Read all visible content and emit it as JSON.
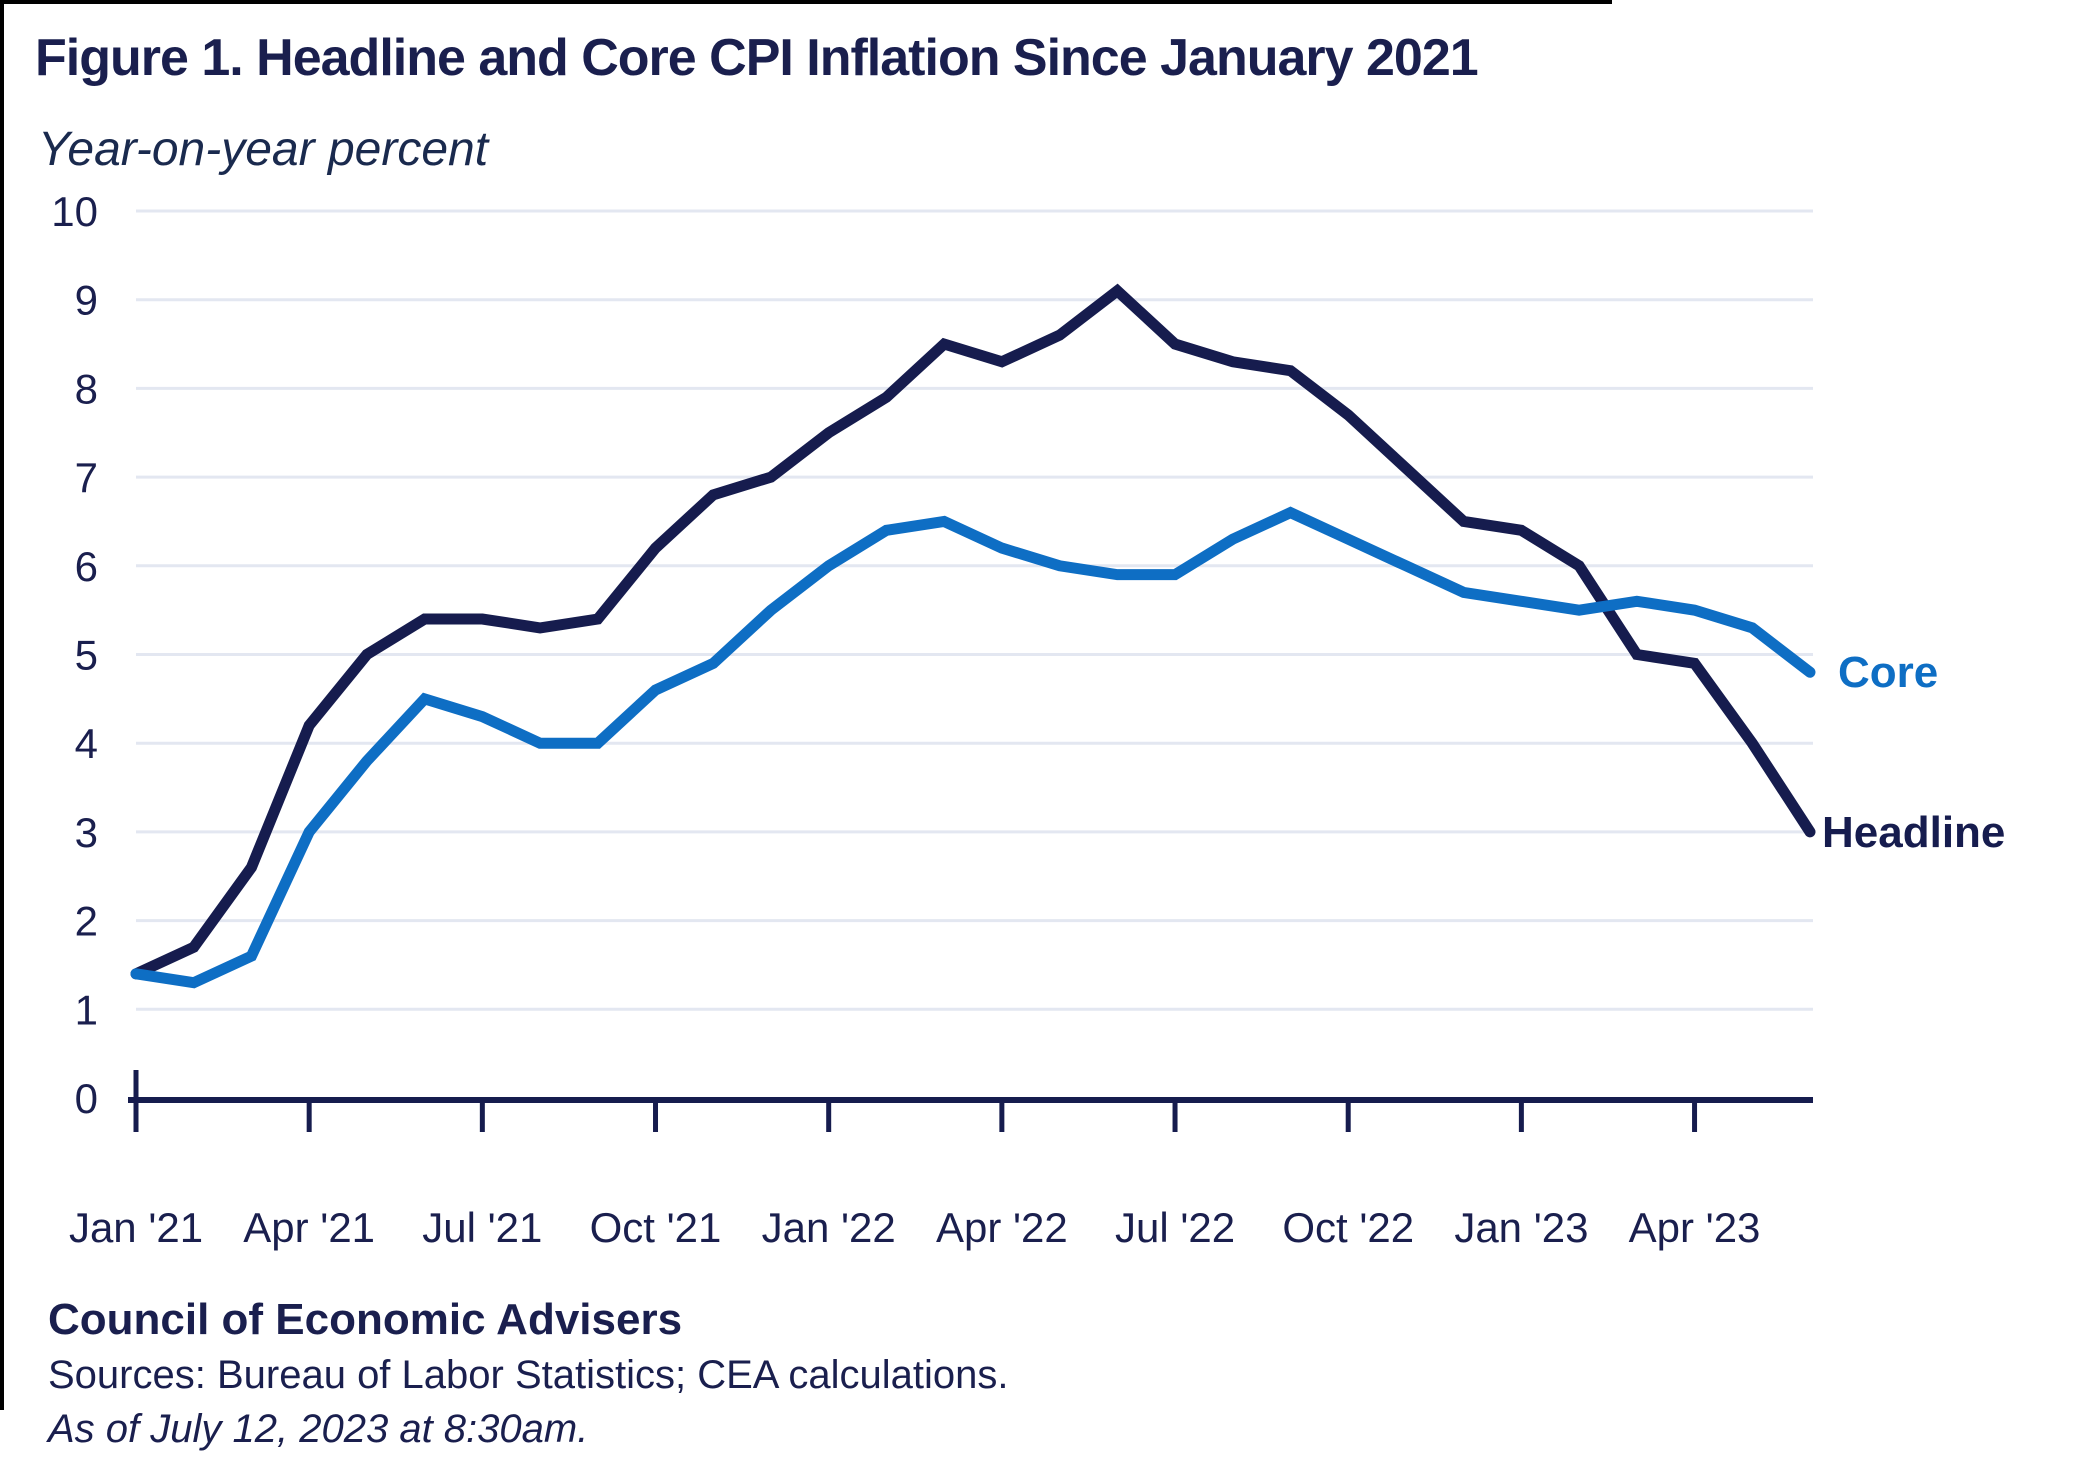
{
  "page": {
    "title": "Figure 1. Headline and Core CPI Inflation Since January 2021",
    "subtitle": "Year-on-year percent",
    "footer": {
      "org": "Council of Economic Advisers",
      "sources": "Sources: Bureau of Labor Statistics; CEA calculations.",
      "as_of": "As of July 12, 2023 at 8:30am."
    }
  },
  "colors": {
    "headline_line": "#161C4E",
    "core_line": "#0E6EC4",
    "text": "#1A1F4E",
    "gridline": "#E3E7F1",
    "axis": "#161C4E"
  },
  "chart_data": {
    "type": "line",
    "title": "Figure 1. Headline and Core CPI Inflation Since January 2021",
    "value_unit_note": "Year-on-year percent",
    "x_months": [
      "2021-01",
      "2021-02",
      "2021-03",
      "2021-04",
      "2021-05",
      "2021-06",
      "2021-07",
      "2021-08",
      "2021-09",
      "2021-10",
      "2021-11",
      "2021-12",
      "2022-01",
      "2022-02",
      "2022-03",
      "2022-04",
      "2022-05",
      "2022-06",
      "2022-07",
      "2022-08",
      "2022-09",
      "2022-10",
      "2022-11",
      "2022-12",
      "2023-01",
      "2023-02",
      "2023-03",
      "2023-04",
      "2023-05",
      "2023-06"
    ],
    "x_tick_labels": [
      "Jan '21",
      "Apr '21",
      "Jul '21",
      "Oct '21",
      "Jan '22",
      "Apr '22",
      "Jul '22",
      "Oct '22",
      "Jan '23",
      "Apr '23"
    ],
    "x_tick_month_indices": [
      0,
      3,
      6,
      9,
      12,
      15,
      18,
      21,
      24,
      27
    ],
    "y_ticks": [
      0,
      1,
      2,
      3,
      4,
      5,
      6,
      7,
      8,
      9,
      10
    ],
    "ylim": [
      0,
      10
    ],
    "grid": "horizontal",
    "legend_position": "end-of-line-labels",
    "series": [
      {
        "name": "Headline",
        "color": "#161C4E",
        "values": [
          1.4,
          1.7,
          2.6,
          4.2,
          5.0,
          5.4,
          5.4,
          5.3,
          5.4,
          6.2,
          6.8,
          7.0,
          7.5,
          7.9,
          8.5,
          8.3,
          8.6,
          9.1,
          8.5,
          8.3,
          8.2,
          7.7,
          7.1,
          6.5,
          6.4,
          6.0,
          5.0,
          4.9,
          4.0,
          3.0
        ]
      },
      {
        "name": "Core",
        "color": "#0E6EC4",
        "values": [
          1.4,
          1.3,
          1.6,
          3.0,
          3.8,
          4.5,
          4.3,
          4.0,
          4.0,
          4.6,
          4.9,
          5.5,
          6.0,
          6.4,
          6.5,
          6.2,
          6.0,
          5.9,
          5.9,
          6.3,
          6.6,
          6.3,
          6.0,
          5.7,
          5.6,
          5.5,
          5.6,
          5.5,
          5.3,
          4.8
        ]
      }
    ]
  }
}
